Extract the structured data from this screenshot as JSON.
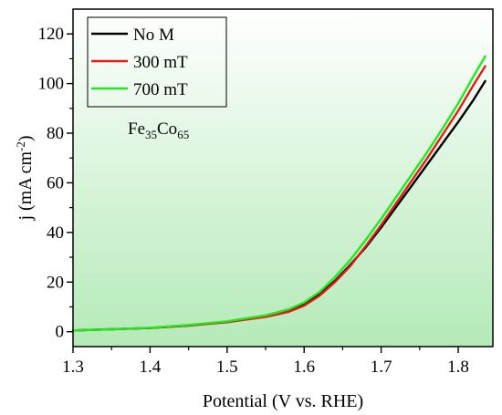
{
  "chart_data": {
    "type": "line",
    "title": "",
    "xlabel": "Potential (V vs. RHE)",
    "ylabel": {
      "main": "j (mA cm",
      "sup": "-2",
      "close": ")"
    },
    "xlim": [
      1.3,
      1.845
    ],
    "ylim": [
      -6,
      130
    ],
    "xticks": [
      1.3,
      1.4,
      1.5,
      1.6,
      1.7,
      1.8
    ],
    "xtick_labels": [
      "1.3",
      "1.4",
      "1.5",
      "1.6",
      "1.7",
      "1.8"
    ],
    "yticks": [
      0,
      20,
      40,
      60,
      80,
      100,
      120
    ],
    "ytick_labels": [
      "0",
      "20",
      "40",
      "60",
      "80",
      "100",
      "120"
    ],
    "grid": false,
    "legend_position": "top-left",
    "background": "light green vertical gradient",
    "annotation": {
      "pre1": "Fe",
      "sub1": "35",
      "pre2": "Co",
      "sub2": "65"
    },
    "series": [
      {
        "name": "No M",
        "color": "#000000",
        "x": [
          1.3,
          1.35,
          1.4,
          1.45,
          1.5,
          1.55,
          1.58,
          1.6,
          1.62,
          1.64,
          1.66,
          1.68,
          1.7,
          1.72,
          1.74,
          1.76,
          1.78,
          1.8,
          1.82,
          1.835
        ],
        "y": [
          0.5,
          1.0,
          1.5,
          2.5,
          4.0,
          6.3,
          8.5,
          11.0,
          15.0,
          20.5,
          27.0,
          34.0,
          42.0,
          50.5,
          59.0,
          67.5,
          76.0,
          84.5,
          93.5,
          101.0
        ]
      },
      {
        "name": "300 mT",
        "color": "#e41a1c",
        "x": [
          1.3,
          1.35,
          1.4,
          1.45,
          1.5,
          1.55,
          1.58,
          1.6,
          1.62,
          1.64,
          1.66,
          1.68,
          1.7,
          1.72,
          1.74,
          1.76,
          1.78,
          1.8,
          1.82,
          1.835
        ],
        "y": [
          0.5,
          1.0,
          1.5,
          2.5,
          3.8,
          6.0,
          8.0,
          10.5,
          14.5,
          20.0,
          26.5,
          34.5,
          43.0,
          52.0,
          61.0,
          70.0,
          79.5,
          89.0,
          99.5,
          107.0
        ]
      },
      {
        "name": "700 mT",
        "color": "#22e81e",
        "x": [
          1.3,
          1.35,
          1.4,
          1.45,
          1.5,
          1.55,
          1.58,
          1.6,
          1.62,
          1.64,
          1.66,
          1.68,
          1.7,
          1.72,
          1.74,
          1.76,
          1.78,
          1.8,
          1.82,
          1.835
        ],
        "y": [
          0.5,
          1.0,
          1.6,
          2.7,
          4.2,
          6.6,
          9.0,
          11.8,
          16.0,
          22.0,
          29.0,
          37.0,
          45.5,
          54.5,
          63.5,
          72.5,
          82.0,
          92.0,
          103.0,
          111.0
        ]
      }
    ]
  }
}
